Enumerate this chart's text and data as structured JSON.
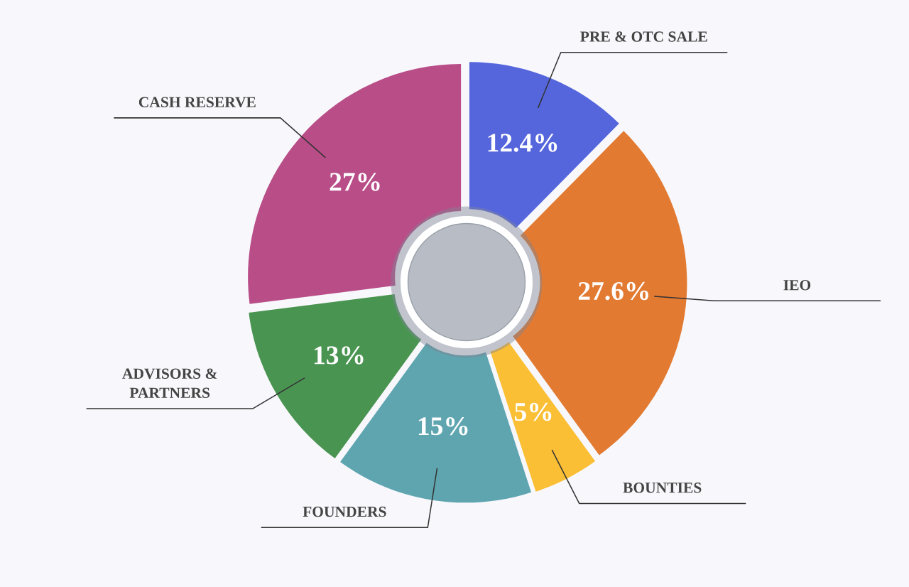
{
  "chart_data": {
    "type": "donut",
    "categories": [
      "PRE & OTC SALE",
      "IEO",
      "BOUNTIES",
      "FOUNDERS",
      "ADVISORS & PARTNERS",
      "CASH RESERVE"
    ],
    "values": [
      12.4,
      27.6,
      5,
      15,
      13,
      27
    ],
    "value_labels": [
      "12.4%",
      "27.6%",
      "5%",
      "15%",
      "13%",
      "27%"
    ],
    "colors": [
      "#5566dd",
      "#e27a32",
      "#fbbf36",
      "#5fa5b0",
      "#4a9452",
      "#b94d88"
    ]
  }
}
